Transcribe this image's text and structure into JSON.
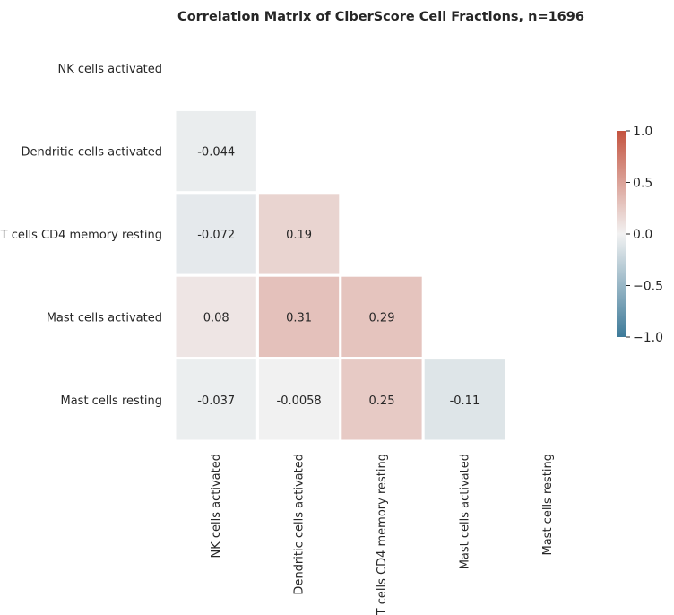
{
  "chart_data": {
    "type": "heatmap",
    "title": "Correlation Matrix of CiberScore Cell Fractions, n=1696",
    "xlabel": "",
    "ylabel": "",
    "labels": [
      "NK cells activated",
      "Dendritic cells activated",
      "T cells CD4 memory resting",
      "Mast cells activated",
      "Mast cells resting"
    ],
    "mask": "upper-triangle-including-diagonal",
    "values": [
      [
        null,
        null,
        null,
        null,
        null
      ],
      [
        -0.044,
        null,
        null,
        null,
        null
      ],
      [
        -0.072,
        0.19,
        null,
        null,
        null
      ],
      [
        0.08,
        0.31,
        0.29,
        null,
        null
      ],
      [
        -0.037,
        -0.0058,
        0.25,
        -0.11,
        null
      ]
    ],
    "value_labels": [
      [
        null,
        null,
        null,
        null,
        null
      ],
      [
        "-0.044",
        null,
        null,
        null,
        null
      ],
      [
        "-0.072",
        "0.19",
        null,
        null,
        null
      ],
      [
        "0.08",
        "0.31",
        "0.29",
        null,
        null
      ],
      [
        "-0.037",
        "-0.0058",
        "0.25",
        "-0.11",
        null
      ]
    ],
    "colorbar": {
      "range": [
        -1.0,
        1.0
      ],
      "ticks": [
        1.0,
        0.5,
        0.0,
        -0.5,
        -1.0
      ],
      "tick_labels": [
        "1.0",
        "0.5",
        "0.0",
        "−0.5",
        "−1.0"
      ],
      "low_color": "#3d7a99",
      "mid_color": "#f2f2f2",
      "high_color": "#c4533f"
    }
  }
}
